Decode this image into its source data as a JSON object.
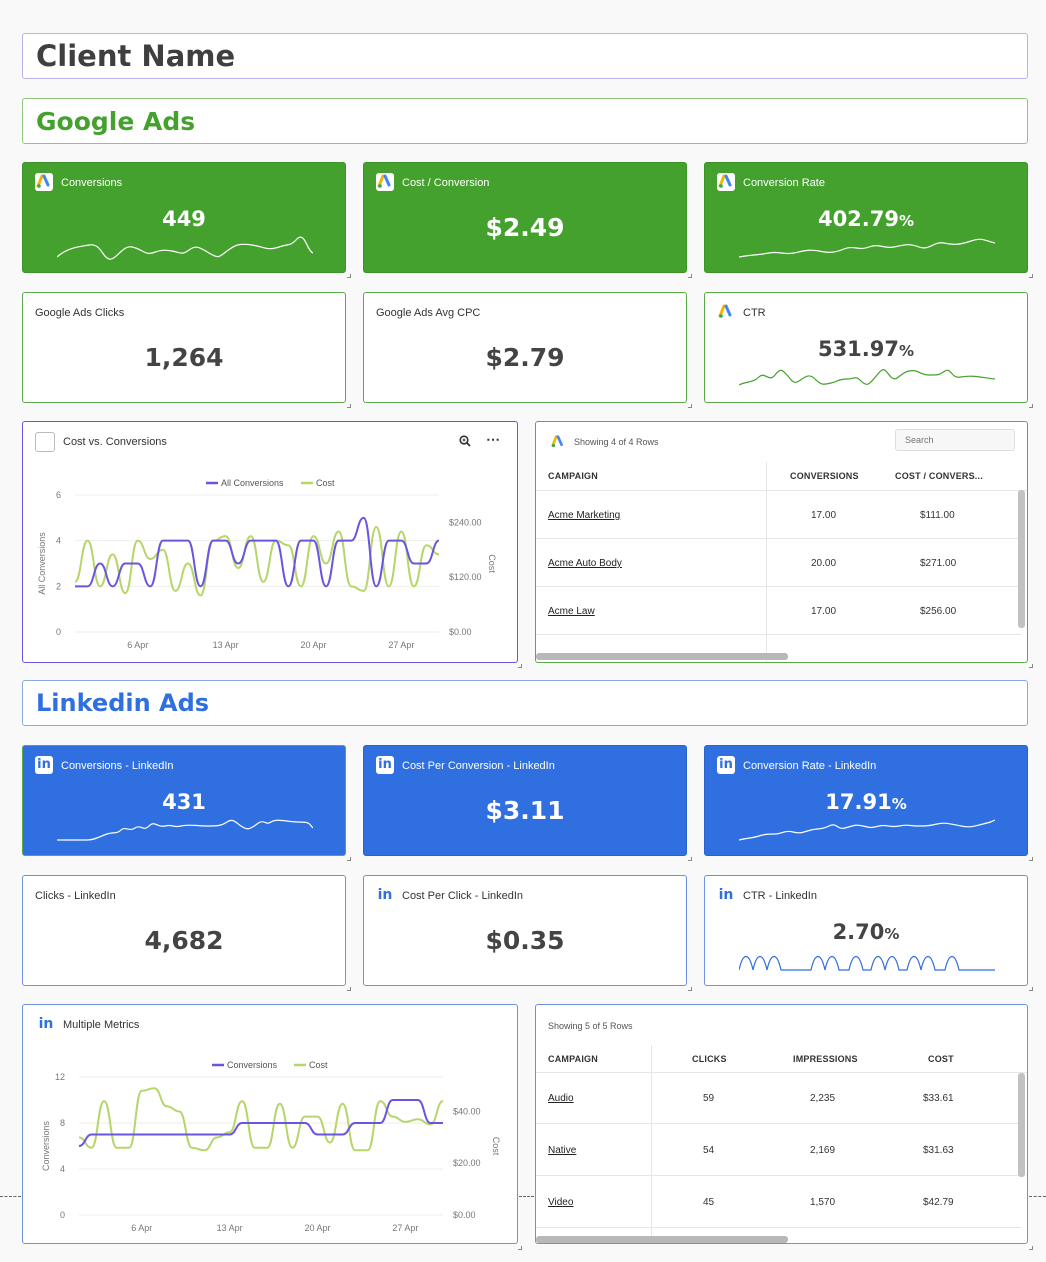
{
  "header": {
    "client_name": "Client Name"
  },
  "google": {
    "section_title": "Google Ads",
    "kpis": {
      "conversions": {
        "title": "Conversions",
        "value": "449"
      },
      "cost_per_conversion": {
        "title": "Cost / Conversion",
        "value": "$2.49"
      },
      "conversion_rate": {
        "title": "Conversion Rate",
        "value": "402.79",
        "unit": "%"
      },
      "clicks": {
        "title": "Google Ads Clicks",
        "value": "1,264"
      },
      "avg_cpc": {
        "title": "Google Ads Avg CPC",
        "value": "$2.79"
      },
      "ctr": {
        "title": "CTR",
        "value": "531.97",
        "unit": "%"
      }
    },
    "chart": {
      "title": "Cost vs. Conversions",
      "legend": [
        "All Conversions",
        "Cost"
      ],
      "ylabel_left": "All Conversions",
      "ylabel_right": "Cost",
      "y_left_ticks": [
        "0",
        "2",
        "4",
        "6"
      ],
      "y_right_ticks": [
        "$0.00",
        "$120.00",
        "$240.00"
      ],
      "x_ticks": [
        "6 Apr",
        "13 Apr",
        "20 Apr",
        "27 Apr"
      ]
    },
    "table": {
      "showing": "Showing 4 of 4 Rows",
      "search_placeholder": "Search",
      "columns": [
        "CAMPAIGN",
        "CONVERSIONS",
        "COST / CONVERS..."
      ],
      "rows": [
        {
          "campaign": "Acme Marketing",
          "conversions": "17.00",
          "cost": "$111.00"
        },
        {
          "campaign": "Acme Auto Body",
          "conversions": "20.00",
          "cost": "$271.00"
        },
        {
          "campaign": "Acme Law",
          "conversions": "17.00",
          "cost": "$256.00"
        }
      ]
    }
  },
  "linkedin": {
    "section_title": "Linkedin Ads",
    "kpis": {
      "conversions": {
        "title": "Conversions - LinkedIn",
        "value": "431"
      },
      "cost_per_conversion": {
        "title": "Cost Per Conversion - LinkedIn",
        "value": "$3.11"
      },
      "conversion_rate": {
        "title": "Conversion Rate - LinkedIn",
        "value": "17.91",
        "unit": "%"
      },
      "clicks": {
        "title": "Clicks - LinkedIn",
        "value": "4,682"
      },
      "cpc": {
        "title": "Cost Per Click - LinkedIn",
        "value": "$0.35"
      },
      "ctr": {
        "title": "CTR - LinkedIn",
        "value": "2.70",
        "unit": "%"
      }
    },
    "chart": {
      "title": "Multiple Metrics",
      "legend": [
        "Conversions",
        "Cost"
      ],
      "ylabel_left": "Conversions",
      "ylabel_right": "Cost",
      "y_left_ticks": [
        "0",
        "4",
        "8",
        "12"
      ],
      "y_right_ticks": [
        "$0.00",
        "$20.00",
        "$40.00"
      ],
      "x_ticks": [
        "6 Apr",
        "13 Apr",
        "20 Apr",
        "27 Apr"
      ]
    },
    "table": {
      "showing": "Showing 5 of 5 Rows",
      "columns": [
        "CAMPAIGN",
        "CLICKS",
        "IMPRESSIONS",
        "COST"
      ],
      "rows": [
        {
          "campaign": "Audio",
          "clicks": "59",
          "impressions": "2,235",
          "cost": "$33.61"
        },
        {
          "campaign": "Native",
          "clicks": "54",
          "impressions": "2,169",
          "cost": "$31.63"
        },
        {
          "campaign": "Video",
          "clicks": "45",
          "impressions": "1,570",
          "cost": "$42.79"
        }
      ]
    }
  },
  "colors": {
    "google_green": "#44a12d",
    "linkedin_blue": "#2f6fe0",
    "conversions_line": "#6a55e0",
    "cost_line": "#b5d66a"
  },
  "chart_data": [
    {
      "type": "line",
      "title": "Cost vs. Conversions",
      "x": [
        "1 Apr",
        "2 Apr",
        "3 Apr",
        "4 Apr",
        "5 Apr",
        "6 Apr",
        "7 Apr",
        "8 Apr",
        "9 Apr",
        "10 Apr",
        "11 Apr",
        "12 Apr",
        "13 Apr",
        "14 Apr",
        "15 Apr",
        "16 Apr",
        "17 Apr",
        "18 Apr",
        "19 Apr",
        "20 Apr",
        "21 Apr",
        "22 Apr",
        "23 Apr",
        "24 Apr",
        "25 Apr",
        "26 Apr",
        "27 Apr",
        "28 Apr",
        "29 Apr",
        "30 Apr"
      ],
      "series": [
        {
          "name": "All Conversions",
          "axis": "left",
          "values": [
            2,
            2,
            3,
            2,
            3,
            3,
            2,
            4,
            4,
            4,
            2,
            4,
            4,
            3,
            4,
            4,
            4,
            2,
            4,
            4,
            2,
            4,
            4,
            5,
            2,
            4,
            4,
            3,
            3,
            4
          ]
        },
        {
          "name": "Cost",
          "axis": "right",
          "values": [
            110,
            200,
            100,
            170,
            85,
            200,
            160,
            180,
            90,
            150,
            80,
            200,
            210,
            140,
            210,
            110,
            200,
            190,
            100,
            210,
            150,
            220,
            100,
            90,
            230,
            100,
            220,
            100,
            190,
            170
          ]
        }
      ],
      "ylabel": "All Conversions",
      "ylim": [
        0,
        6
      ],
      "y2label": "Cost",
      "y2lim": [
        0,
        300
      ],
      "legend": "top-center",
      "grid": true
    },
    {
      "type": "line",
      "title": "Multiple Metrics",
      "x": [
        "1 Apr",
        "2 Apr",
        "3 Apr",
        "4 Apr",
        "5 Apr",
        "6 Apr",
        "7 Apr",
        "8 Apr",
        "9 Apr",
        "10 Apr",
        "11 Apr",
        "12 Apr",
        "13 Apr",
        "14 Apr",
        "15 Apr",
        "16 Apr",
        "17 Apr",
        "18 Apr",
        "19 Apr",
        "20 Apr",
        "21 Apr",
        "22 Apr",
        "23 Apr",
        "24 Apr",
        "25 Apr",
        "26 Apr",
        "27 Apr",
        "28 Apr",
        "29 Apr",
        "30 Apr"
      ],
      "series": [
        {
          "name": "Conversions",
          "axis": "left",
          "values": [
            6,
            7,
            7,
            7,
            7,
            7,
            7,
            7,
            7,
            7,
            7,
            7,
            7,
            8,
            8,
            8,
            8,
            8,
            8,
            7,
            7,
            7,
            8,
            8,
            8,
            10,
            10,
            10,
            8,
            8
          ]
        },
        {
          "name": "Cost",
          "axis": "right",
          "values": [
            30,
            26,
            44,
            26,
            26,
            48,
            49,
            42,
            40,
            26,
            25,
            30,
            32,
            44,
            26,
            26,
            43,
            26,
            38,
            38,
            28,
            43,
            25,
            25,
            44,
            38,
            36,
            37,
            35,
            44
          ]
        }
      ],
      "ylabel": "Conversions",
      "ylim": [
        0,
        12
      ],
      "y2label": "Cost",
      "y2lim": [
        0,
        53.33
      ],
      "legend": "top-center",
      "grid": true
    }
  ]
}
